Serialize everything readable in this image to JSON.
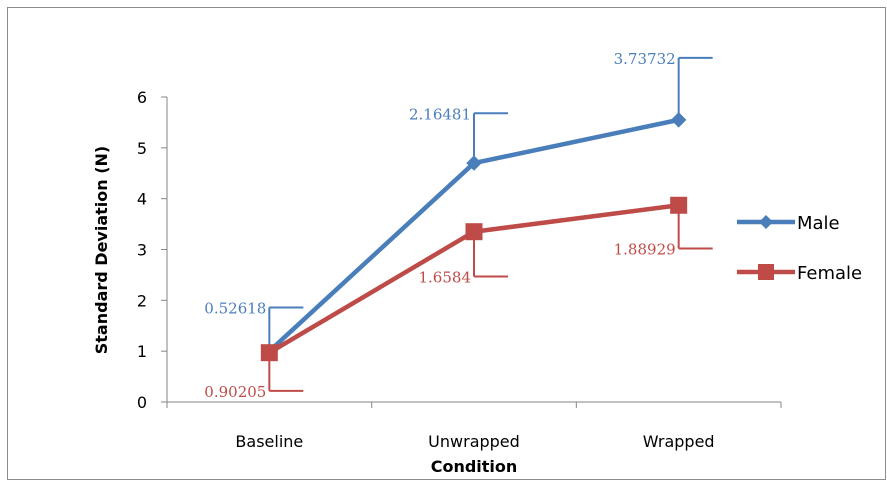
{
  "chart_data": {
    "type": "line",
    "title": "",
    "xlabel": "Condition",
    "ylabel": "Standard Deviation (N)",
    "categories": [
      "Baseline",
      "Unwrapped",
      "Wrapped"
    ],
    "ylim": [
      0,
      6
    ],
    "yticks": [
      "0",
      "1",
      "2",
      "3",
      "4",
      "5",
      "6"
    ],
    "grid": false,
    "legend_position": "right",
    "series": [
      {
        "name": "Male",
        "color": "#4a7ebb",
        "marker": "diamond",
        "values": [
          1.0,
          4.7,
          5.55
        ],
        "error_plus": [
          0.86,
          0.98,
          1.22
        ],
        "error_labels": [
          "0.52618",
          "2.16481",
          "3.73732"
        ]
      },
      {
        "name": "Female",
        "color": "#be4b48",
        "marker": "square",
        "values": [
          0.97,
          3.35,
          3.87
        ],
        "error_minus": [
          0.75,
          0.88,
          0.85
        ],
        "error_labels": [
          "0.90205",
          "1.6584",
          "1.88929"
        ]
      }
    ]
  }
}
